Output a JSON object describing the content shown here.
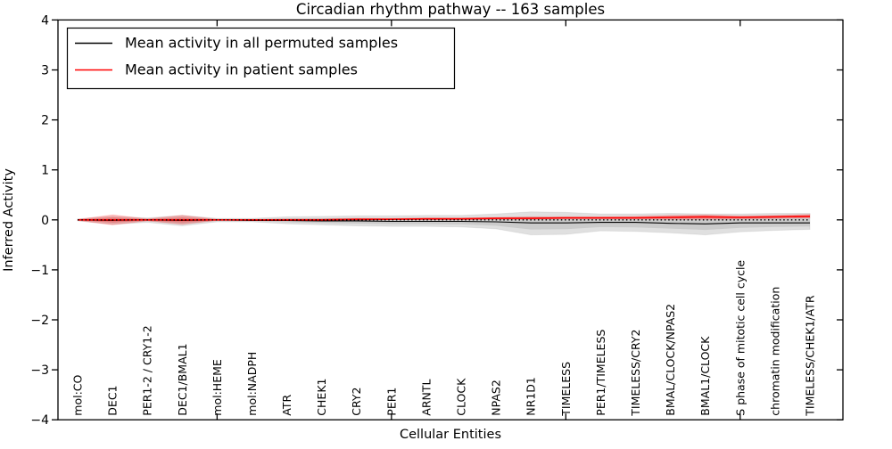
{
  "figure": {
    "title": "Circadian rhythm pathway -- 163 samples",
    "xlabel": "Cellular Entities",
    "ylabel": "Inferred Activity",
    "background_color": "#ffffff",
    "frame_color": "#000000"
  },
  "legend": {
    "position": "upper left",
    "border_color": "#000000",
    "items": [
      {
        "label": "Mean activity in all permuted samples",
        "color": "#000000"
      },
      {
        "label": "Mean activity in patient samples",
        "color": "#ff0000"
      }
    ]
  },
  "chart_data": {
    "type": "line",
    "title": "Circadian rhythm pathway -- 163 samples",
    "xlabel": "Cellular Entities",
    "ylabel": "Inferred Activity",
    "ylim": [
      -4,
      4
    ],
    "yticks": [
      -4,
      -3,
      -2,
      -1,
      0,
      1,
      2,
      3,
      4
    ],
    "xticks_major_at_category_index": [
      4,
      9,
      14,
      19
    ],
    "grid": false,
    "legend_position": "upper left",
    "categories": [
      "mol:CO",
      "DEC1",
      "PER1-2 / CRY1-2",
      "DEC1/BMAL1",
      "mol:HEME",
      "mol:NADPH",
      "ATR",
      "CHEK1",
      "CRY2",
      "PER1",
      "ARNTL",
      "CLOCK",
      "NPAS2",
      "NR1D1",
      "TIMELESS",
      "PER1/TIMELESS",
      "TIMELESS/CRY2",
      "BMAL/CLOCK/NPAS2",
      "BMAL1/CLOCK",
      "S phase of mitotic cell cycle",
      "chromatin modification",
      "TIMELESS/CHEK1/ATR"
    ],
    "series": [
      {
        "name": "Mean activity in all permuted samples",
        "color": "#000000",
        "line_width": 1.1,
        "values": [
          0,
          -0.01,
          0,
          -0.01,
          0,
          -0.01,
          -0.01,
          -0.02,
          -0.02,
          -0.03,
          -0.03,
          -0.03,
          -0.04,
          -0.06,
          -0.06,
          -0.05,
          -0.05,
          -0.07,
          -0.08,
          -0.06,
          -0.06,
          -0.06
        ]
      },
      {
        "name": "Mean activity in patient samples",
        "color": "#ff0000",
        "line_width": 1.6,
        "values": [
          0,
          0,
          0,
          0,
          0,
          0,
          0,
          0,
          0.01,
          0.01,
          0.02,
          0.02,
          0.03,
          0.03,
          0.04,
          0.04,
          0.04,
          0.05,
          0.06,
          0.05,
          0.06,
          0.07
        ]
      }
    ],
    "bands": [
      {
        "name": "permuted-std-band",
        "color": "#a0a0a0",
        "opacity": 0.32,
        "upper": [
          0.02,
          0.07,
          0.04,
          0.09,
          0.03,
          0.03,
          0.06,
          0.07,
          0.08,
          0.08,
          0.09,
          0.09,
          0.12,
          0.16,
          0.15,
          0.12,
          0.12,
          0.13,
          0.12,
          0.12,
          0.13,
          0.13
        ],
        "lower": [
          -0.02,
          -0.09,
          -0.05,
          -0.12,
          -0.04,
          -0.04,
          -0.08,
          -0.1,
          -0.12,
          -0.13,
          -0.13,
          -0.14,
          -0.18,
          -0.3,
          -0.29,
          -0.22,
          -0.23,
          -0.26,
          -0.3,
          -0.24,
          -0.21,
          -0.19
        ],
        "center_series": 0
      },
      {
        "name": "patient-std-band",
        "color": "#ff2a2a",
        "opacity": 0.28,
        "upper": [
          0.01,
          0.1,
          0.02,
          0.09,
          0.01,
          0.01,
          0.02,
          0.02,
          0.03,
          0.03,
          0.04,
          0.04,
          0.05,
          0.06,
          0.06,
          0.06,
          0.07,
          0.09,
          0.1,
          0.08,
          0.09,
          0.11
        ],
        "lower": [
          -0.01,
          -0.1,
          -0.02,
          -0.09,
          -0.01,
          -0.01,
          -0.01,
          -0.01,
          -0.01,
          0,
          0,
          0,
          0.01,
          0.01,
          0.02,
          0.02,
          0.02,
          0.01,
          0.01,
          0.02,
          0.03,
          0.04
        ],
        "center_series": 1
      }
    ],
    "zero_line": {
      "y": 0,
      "color": "#000000",
      "style": "dotted"
    }
  }
}
